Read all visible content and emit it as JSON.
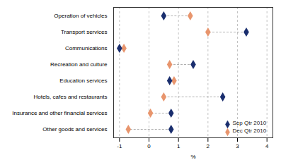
{
  "chart_data": {
    "type": "dumbbell",
    "orientation": "horizontal",
    "categories": [
      "Operation of vehicles",
      "Transport services",
      "Communications",
      "Recreation and culture",
      "Education services",
      "Hotels, cafes and restaurants",
      "Insurance and other financial services",
      "Other goods and services"
    ],
    "series": [
      {
        "name": "Sep Qtr 2010",
        "color": "#1a2e6e",
        "values": [
          0.5,
          3.3,
          -1.0,
          1.5,
          0.7,
          2.5,
          0.75,
          0.75
        ]
      },
      {
        "name": "Dec Qtr 2010",
        "color": "#e8956d",
        "values": [
          1.4,
          2.0,
          -0.85,
          0.7,
          0.85,
          0.5,
          0.05,
          -0.7
        ]
      }
    ],
    "xlabel": "%",
    "xlim": [
      -1.2,
      4.2
    ],
    "xticks": [
      -1,
      0,
      1,
      2,
      3,
      4
    ],
    "grid": true,
    "legend": "lower right",
    "marker": "diamond"
  }
}
